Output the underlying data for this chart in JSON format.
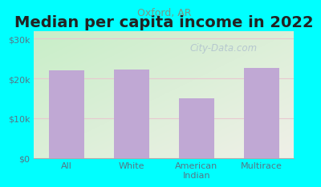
{
  "title": "Median per capita income in 2022",
  "subtitle": "Oxford, AR",
  "categories": [
    "All",
    "White",
    "American\nIndian",
    "Multirace"
  ],
  "values": [
    22000,
    22200,
    15000,
    22700
  ],
  "bar_color": "#c0a8d4",
  "background_outer": "#00ffff",
  "background_top_left": "#c8eec8",
  "background_bottom_right": "#f0f0e8",
  "title_color": "#222222",
  "subtitle_color": "#779988",
  "tick_color": "#557788",
  "grid_color": "#e8c8d0",
  "ylim": [
    0,
    32000
  ],
  "yticks": [
    0,
    10000,
    20000,
    30000
  ],
  "ytick_labels": [
    "$0",
    "$10k",
    "$20k",
    "$30k"
  ],
  "watermark": "City-Data.com",
  "title_fontsize": 14,
  "subtitle_fontsize": 9,
  "tick_fontsize": 8
}
